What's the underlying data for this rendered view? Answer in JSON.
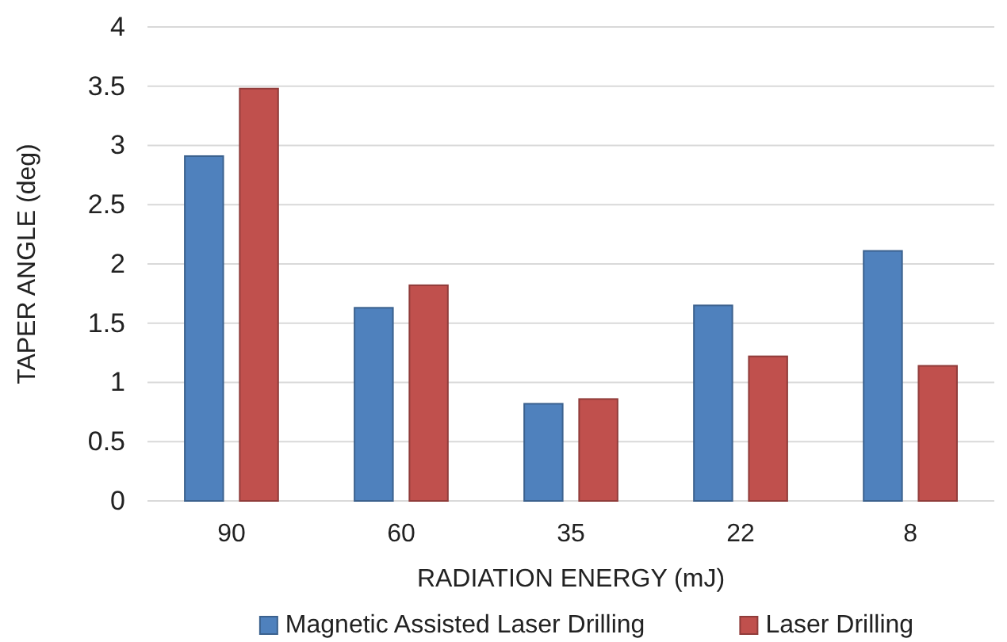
{
  "chart_data": {
    "type": "bar",
    "xlabel": "RADIATION ENERGY (mJ)",
    "ylabel": "TAPER ANGLE (deg)",
    "categories": [
      "90",
      "60",
      "35",
      "22",
      "8"
    ],
    "series": [
      {
        "name": "Magnetic Assisted Laser Drilling",
        "color": "#4f81bd",
        "values": [
          2.91,
          1.63,
          0.82,
          1.65,
          2.11
        ]
      },
      {
        "name": "Laser Drilling",
        "color": "#c0504d",
        "values": [
          3.48,
          1.82,
          0.86,
          1.22,
          1.14
        ]
      }
    ],
    "ylim": [
      0,
      4
    ],
    "yticks": [
      0,
      0.5,
      1,
      1.5,
      2,
      2.5,
      3,
      3.5,
      4
    ],
    "grid": "y",
    "legend": "bottom"
  }
}
